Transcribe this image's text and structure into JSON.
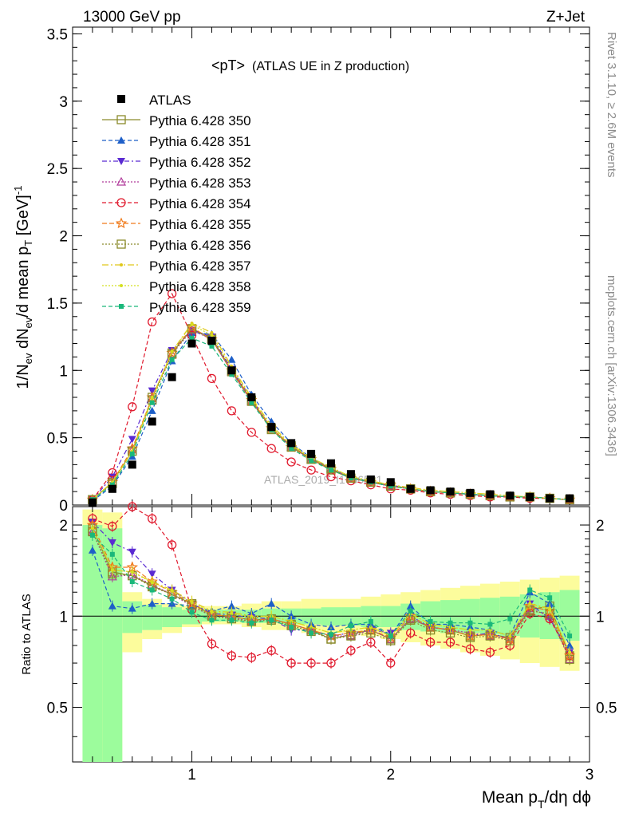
{
  "header": {
    "left": "13000 GeV pp",
    "right": "Z+Jet",
    "plot_title_main": "<pT>",
    "plot_title_sub": "(ATLAS UE in Z production)"
  },
  "side_text": {
    "rivet": "Rivet 3.1.10, ≥ 2.6M events",
    "source": "mcplots.cern.ch [arXiv:1306.3436]"
  },
  "watermark": "ATLAS_2019_I1736531",
  "colors": {
    "band_stat": "#9cfc9c",
    "band_total": "#fcfc9c",
    "ref_line": "#000000"
  },
  "chart_data": {
    "type": "scatter",
    "x_axis": {
      "label_main": "Mean p",
      "label_sub": "T",
      "label_tail": "/dη dϕ",
      "range": [
        0.4,
        3.0
      ],
      "ticks": [
        "1",
        "2",
        "3"
      ]
    },
    "main_panel": {
      "y_axis": {
        "label_main": "1/N",
        "label_sub1": "ev",
        "label_mid": " dN",
        "label_sub2": "ev",
        "label_mid2": "/d mean p",
        "label_sub3": "T",
        "label_unit": " [GeV]",
        "label_sup": "-1",
        "range": [
          0,
          3.55
        ],
        "ticks": [
          "0",
          "0.5",
          "1",
          "1.5",
          "2",
          "2.5",
          "3",
          "3.5"
        ]
      },
      "x": [
        0.5,
        0.6,
        0.7,
        0.8,
        0.9,
        1.0,
        1.1,
        1.2,
        1.3,
        1.4,
        1.5,
        1.6,
        1.7,
        1.8,
        1.9,
        2.0,
        2.1,
        2.2,
        2.3,
        2.4,
        2.5,
        2.6,
        2.7,
        2.8,
        2.9
      ],
      "atlas": [
        0.02,
        0.12,
        0.3,
        0.62,
        0.95,
        1.2,
        1.22,
        1.0,
        0.8,
        0.58,
        0.46,
        0.38,
        0.31,
        0.23,
        0.19,
        0.17,
        0.12,
        0.11,
        0.1,
        0.09,
        0.08,
        0.07,
        0.06,
        0.05,
        0.05
      ],
      "series": [
        {
          "name": "Pythia 6.428 350",
          "values": [
            0.04,
            0.17,
            0.4,
            0.8,
            1.13,
            1.31,
            1.24,
            1.0,
            0.78,
            0.57,
            0.44,
            0.34,
            0.26,
            0.2,
            0.17,
            0.14,
            0.12,
            0.1,
            0.09,
            0.08,
            0.07,
            0.06,
            0.06,
            0.05,
            0.04
          ]
        },
        {
          "name": "Pythia 6.428 351",
          "values": [
            0.03,
            0.14,
            0.36,
            0.7,
            1.07,
            1.28,
            1.27,
            1.08,
            0.82,
            0.62,
            0.46,
            0.35,
            0.27,
            0.21,
            0.17,
            0.14,
            0.12,
            0.1,
            0.09,
            0.08,
            0.07,
            0.06,
            0.06,
            0.05,
            0.04
          ]
        },
        {
          "name": "Pythia 6.428 352",
          "values": [
            0.04,
            0.21,
            0.49,
            0.85,
            1.15,
            1.3,
            1.25,
            1.01,
            0.79,
            0.57,
            0.43,
            0.34,
            0.27,
            0.2,
            0.17,
            0.15,
            0.12,
            0.1,
            0.09,
            0.08,
            0.07,
            0.06,
            0.06,
            0.05,
            0.04
          ]
        },
        {
          "name": "Pythia 6.428 353",
          "values": [
            0.04,
            0.16,
            0.41,
            0.79,
            1.12,
            1.3,
            1.23,
            0.99,
            0.77,
            0.57,
            0.43,
            0.34,
            0.27,
            0.2,
            0.17,
            0.14,
            0.12,
            0.1,
            0.09,
            0.08,
            0.07,
            0.06,
            0.06,
            0.05,
            0.04
          ]
        },
        {
          "name": "Pythia 6.428 354",
          "values": [
            0.04,
            0.24,
            0.73,
            1.36,
            1.57,
            1.26,
            0.94,
            0.7,
            0.54,
            0.42,
            0.32,
            0.26,
            0.21,
            0.18,
            0.15,
            0.12,
            0.11,
            0.09,
            0.08,
            0.07,
            0.06,
            0.06,
            0.05,
            0.05,
            0.04
          ]
        },
        {
          "name": "Pythia 6.428 355",
          "values": [
            0.04,
            0.17,
            0.42,
            0.8,
            1.13,
            1.32,
            1.23,
            1.0,
            0.78,
            0.57,
            0.43,
            0.34,
            0.27,
            0.2,
            0.17,
            0.15,
            0.12,
            0.1,
            0.09,
            0.08,
            0.07,
            0.06,
            0.06,
            0.05,
            0.04
          ]
        },
        {
          "name": "Pythia 6.428 356",
          "values": [
            0.04,
            0.16,
            0.4,
            0.78,
            1.12,
            1.31,
            1.23,
            0.99,
            0.77,
            0.56,
            0.43,
            0.34,
            0.27,
            0.2,
            0.17,
            0.14,
            0.12,
            0.1,
            0.09,
            0.08,
            0.07,
            0.06,
            0.06,
            0.05,
            0.04
          ]
        },
        {
          "name": "Pythia 6.428 357",
          "values": [
            0.04,
            0.17,
            0.4,
            0.79,
            1.14,
            1.35,
            1.28,
            1.03,
            0.8,
            0.59,
            0.45,
            0.35,
            0.28,
            0.21,
            0.18,
            0.15,
            0.13,
            0.11,
            0.1,
            0.09,
            0.08,
            0.07,
            0.06,
            0.05,
            0.04
          ]
        },
        {
          "name": "Pythia 6.428 358",
          "values": [
            0.04,
            0.17,
            0.4,
            0.8,
            1.14,
            1.34,
            1.26,
            1.02,
            0.79,
            0.58,
            0.44,
            0.35,
            0.28,
            0.21,
            0.18,
            0.15,
            0.12,
            0.11,
            0.1,
            0.09,
            0.08,
            0.07,
            0.06,
            0.05,
            0.04
          ]
        },
        {
          "name": "Pythia 6.428 359",
          "values": [
            0.04,
            0.15,
            0.38,
            0.76,
            1.08,
            1.24,
            1.18,
            0.97,
            0.76,
            0.56,
            0.42,
            0.33,
            0.26,
            0.2,
            0.17,
            0.14,
            0.12,
            0.1,
            0.09,
            0.08,
            0.07,
            0.06,
            0.06,
            0.05,
            0.04
          ]
        }
      ],
      "styles": [
        {
          "color": "#8a8a2a",
          "marker": "open-square",
          "dash": ""
        },
        {
          "color": "#1e5fc8",
          "marker": "filled-triangle-up",
          "dash": "5,3"
        },
        {
          "color": "#5a2ad2",
          "marker": "filled-triangle-down",
          "dash": "6,3,2,3"
        },
        {
          "color": "#b03a9a",
          "marker": "open-triangle-up",
          "dash": "2,2"
        },
        {
          "color": "#e0182c",
          "marker": "open-circle",
          "dash": "5,3"
        },
        {
          "color": "#f07a1a",
          "marker": "open-star",
          "dash": "6,3"
        },
        {
          "color": "#8a8a2a",
          "marker": "open-square",
          "dash": "2,2"
        },
        {
          "color": "#e0c81a",
          "marker": "small-dot",
          "dash": "8,3,2,3"
        },
        {
          "color": "#d4e020",
          "marker": "small-dot",
          "dash": "2,2"
        },
        {
          "color": "#1ab87a",
          "marker": "filled-square-small",
          "dash": "5,3"
        }
      ]
    },
    "ratio_panel": {
      "y_axis": {
        "label": "Ratio to ATLAS",
        "range": [
          0.33,
          2.3
        ],
        "scale": "log",
        "ticks": [
          "0.5",
          "1",
          "2"
        ]
      },
      "band_edges": [
        0.45,
        0.55,
        0.65,
        0.75,
        0.85,
        0.95,
        1.05,
        1.15,
        1.25,
        1.35,
        1.45,
        1.55,
        1.65,
        1.75,
        1.85,
        1.95,
        2.05,
        2.15,
        2.25,
        2.35,
        2.45,
        2.55,
        2.65,
        2.75,
        2.85,
        2.95
      ],
      "band_total_hi": [
        2.25,
        2.2,
        1.2,
        1.14,
        1.1,
        1.08,
        1.08,
        1.08,
        1.1,
        1.12,
        1.12,
        1.14,
        1.14,
        1.14,
        1.16,
        1.18,
        1.2,
        1.22,
        1.24,
        1.26,
        1.28,
        1.3,
        1.32,
        1.34,
        1.36
      ],
      "band_total_lo": [
        0.33,
        0.33,
        0.76,
        0.84,
        0.88,
        0.92,
        0.94,
        0.94,
        0.92,
        0.9,
        0.9,
        0.88,
        0.88,
        0.88,
        0.86,
        0.84,
        0.82,
        0.8,
        0.78,
        0.76,
        0.74,
        0.72,
        0.7,
        0.68,
        0.66
      ],
      "band_stat_hi": [
        2.0,
        1.95,
        1.12,
        1.09,
        1.07,
        1.05,
        1.05,
        1.05,
        1.05,
        1.06,
        1.06,
        1.06,
        1.07,
        1.07,
        1.08,
        1.08,
        1.1,
        1.12,
        1.13,
        1.14,
        1.15,
        1.16,
        1.18,
        1.2,
        1.22
      ],
      "band_stat_lo": [
        0.33,
        0.33,
        0.88,
        0.9,
        0.92,
        0.94,
        0.96,
        0.96,
        0.95,
        0.95,
        0.94,
        0.94,
        0.93,
        0.93,
        0.92,
        0.92,
        0.9,
        0.89,
        0.88,
        0.88,
        0.87,
        0.86,
        0.85,
        0.84,
        0.83
      ],
      "series": [
        [
          1.95,
          1.4,
          1.36,
          1.26,
          1.18,
          1.1,
          1.01,
          1.0,
          0.97,
          0.98,
          0.94,
          0.9,
          0.84,
          0.87,
          0.9,
          0.84,
          0.98,
          0.92,
          0.9,
          0.86,
          0.87,
          0.85,
          1.05,
          1.08,
          0.74
        ],
        [
          1.65,
          1.08,
          1.06,
          1.1,
          1.1,
          1.08,
          1.04,
          1.08,
          1.02,
          1.1,
          1.0,
          0.94,
          0.92,
          0.94,
          0.94,
          0.86,
          1.08,
          0.94,
          0.94,
          0.92,
          0.9,
          0.86,
          1.2,
          1.1,
          0.8
        ],
        [
          2.05,
          1.75,
          1.63,
          1.38,
          1.22,
          1.1,
          1.02,
          1.01,
          0.99,
          0.98,
          0.9,
          0.9,
          0.86,
          0.88,
          0.9,
          0.88,
          1.0,
          0.92,
          0.9,
          0.86,
          0.88,
          0.84,
          1.1,
          0.98,
          0.76
        ],
        [
          1.9,
          1.35,
          1.37,
          1.27,
          1.18,
          1.08,
          1.0,
          0.99,
          0.96,
          0.98,
          0.94,
          0.9,
          0.86,
          0.86,
          0.9,
          0.84,
          0.98,
          0.92,
          0.9,
          0.88,
          0.86,
          0.84,
          1.06,
          1.0,
          0.72
        ],
        [
          2.1,
          1.98,
          2.35,
          2.1,
          1.72,
          1.05,
          0.81,
          0.74,
          0.73,
          0.77,
          0.7,
          0.7,
          0.7,
          0.77,
          0.82,
          0.7,
          0.88,
          0.82,
          0.82,
          0.78,
          0.76,
          0.8,
          1.02,
          0.98,
          0.74
        ],
        [
          2.0,
          1.45,
          1.45,
          1.3,
          1.2,
          1.1,
          1.01,
          1.0,
          0.97,
          0.98,
          0.94,
          0.9,
          0.86,
          0.88,
          0.9,
          0.85,
          1.0,
          0.92,
          0.9,
          0.86,
          0.87,
          0.84,
          1.08,
          1.04,
          0.74
        ],
        [
          1.9,
          1.38,
          1.36,
          1.25,
          1.18,
          1.09,
          1.0,
          0.98,
          0.96,
          0.97,
          0.93,
          0.89,
          0.84,
          0.86,
          0.88,
          0.83,
          0.97,
          0.9,
          0.88,
          0.85,
          0.86,
          0.83,
          1.04,
          1.02,
          0.72
        ],
        [
          1.95,
          1.42,
          1.4,
          1.3,
          1.22,
          1.12,
          1.04,
          1.03,
          1.0,
          1.0,
          0.96,
          0.92,
          0.88,
          0.9,
          0.92,
          0.86,
          1.02,
          0.94,
          0.92,
          0.9,
          0.9,
          0.86,
          1.1,
          1.06,
          0.76
        ],
        [
          1.95,
          1.42,
          1.4,
          1.29,
          1.21,
          1.11,
          1.03,
          1.02,
          0.99,
          1.0,
          0.96,
          0.92,
          0.88,
          0.9,
          0.92,
          0.86,
          1.02,
          0.94,
          0.92,
          0.9,
          0.9,
          0.86,
          1.1,
          1.05,
          0.76
        ],
        [
          1.85,
          1.6,
          1.3,
          1.22,
          1.14,
          1.03,
          0.97,
          0.97,
          0.95,
          0.97,
          0.92,
          0.88,
          0.87,
          0.93,
          0.96,
          0.86,
          1.04,
          0.96,
          0.95,
          0.95,
          0.94,
          0.98,
          1.22,
          1.15,
          0.86
        ]
      ]
    },
    "legend": {
      "placement": "upper-left",
      "data_label": "ATLAS",
      "entries": [
        "Pythia 6.428 350",
        "Pythia 6.428 351",
        "Pythia 6.428 352",
        "Pythia 6.428 353",
        "Pythia 6.428 354",
        "Pythia 6.428 355",
        "Pythia 6.428 356",
        "Pythia 6.428 357",
        "Pythia 6.428 358",
        "Pythia 6.428 359"
      ]
    }
  }
}
